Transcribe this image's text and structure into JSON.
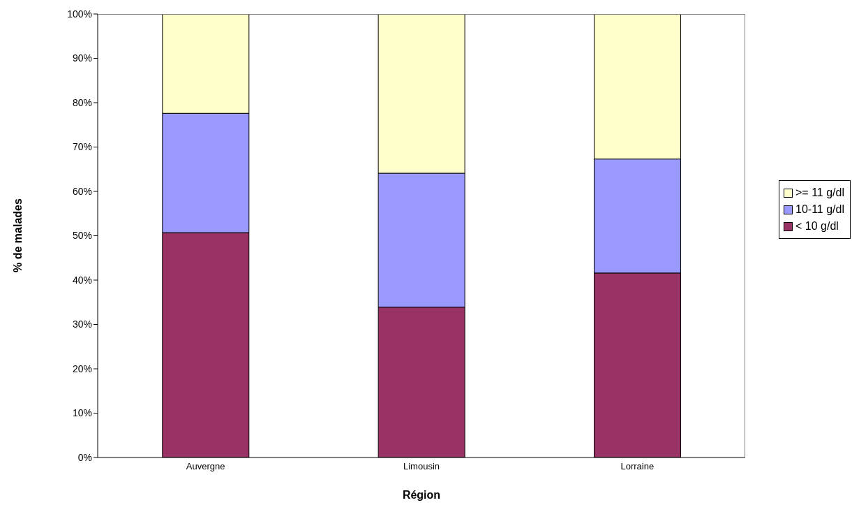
{
  "chart_data": {
    "type": "bar",
    "stacked": true,
    "xlabel": "Région",
    "ylabel": "% de malades",
    "categories": [
      "Auvergne",
      "Limousin",
      "Lorraine"
    ],
    "series": [
      {
        "name": "< 10 g/dl",
        "color": "#993366",
        "values": [
          50.7,
          33.9,
          41.6
        ]
      },
      {
        "name": "10-11 g/dl",
        "color": "#9999ff",
        "values": [
          26.9,
          30.2,
          25.7
        ]
      },
      {
        "name": ">= 11 g/dl",
        "color": "#ffffcc",
        "values": [
          22.4,
          35.9,
          32.7
        ]
      }
    ],
    "ylim": [
      0,
      100
    ],
    "yticks": [
      {
        "value": 0,
        "label": "0%"
      },
      {
        "value": 10,
        "label": "10%"
      },
      {
        "value": 20,
        "label": "20%"
      },
      {
        "value": 30,
        "label": "30%"
      },
      {
        "value": 40,
        "label": "40%"
      },
      {
        "value": 50,
        "label": "50%"
      },
      {
        "value": 60,
        "label": "60%"
      },
      {
        "value": 70,
        "label": "70%"
      },
      {
        "value": 80,
        "label": "80%"
      },
      {
        "value": 90,
        "label": "90%"
      },
      {
        "value": 100,
        "label": "100%"
      }
    ],
    "grid": false,
    "legend": "right"
  }
}
